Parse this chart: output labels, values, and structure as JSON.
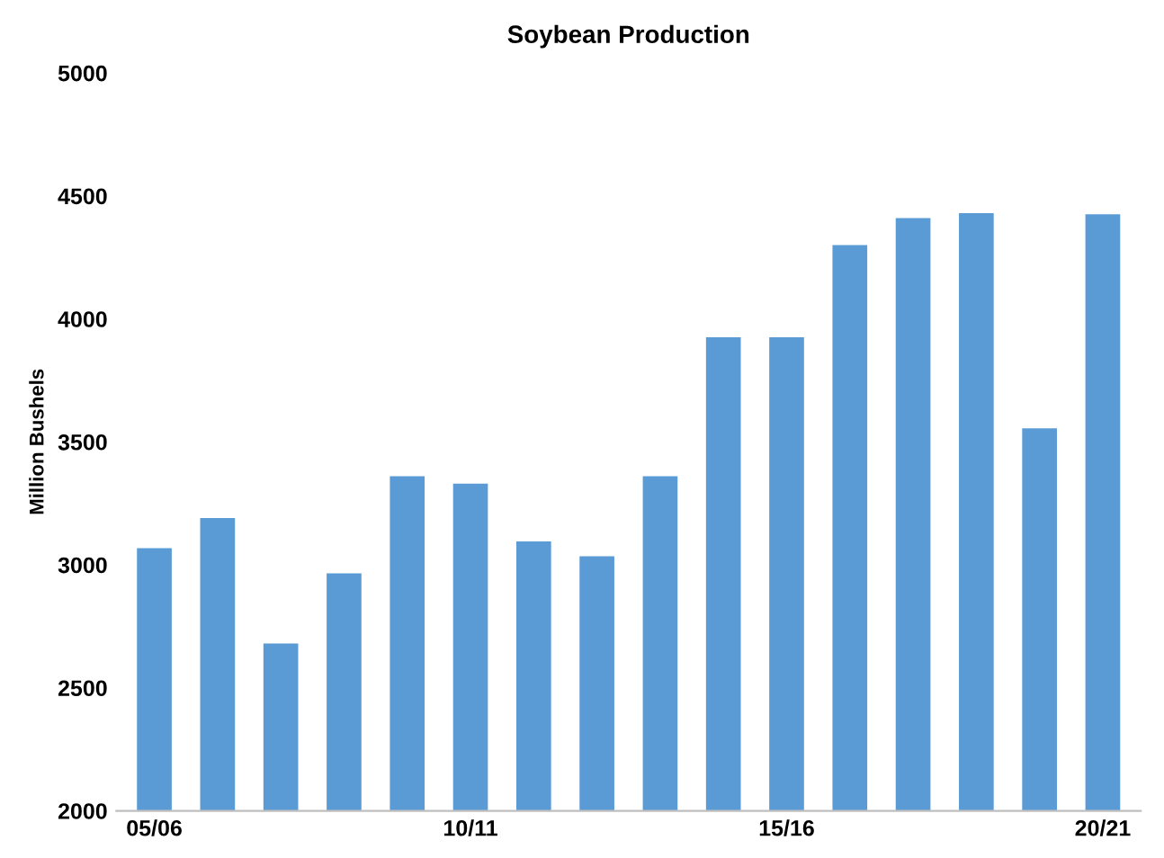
{
  "chart_data": {
    "type": "bar",
    "title": "Soybean Production",
    "ylabel": "Million Bushels",
    "categories": [
      "05/06",
      null,
      null,
      null,
      null,
      "10/11",
      null,
      null,
      null,
      null,
      "15/16",
      null,
      null,
      null,
      null,
      "20/21"
    ],
    "values": [
      3068,
      3190,
      2680,
      2965,
      3360,
      3330,
      3095,
      3035,
      3360,
      3925,
      3925,
      4300,
      4410,
      4430,
      3555,
      4425
    ],
    "color": "#5b9bd5",
    "ylim": [
      2000,
      5000
    ],
    "yticks": [
      2000,
      2500,
      3000,
      3500,
      4000,
      4500,
      5000
    ],
    "grid": false
  }
}
